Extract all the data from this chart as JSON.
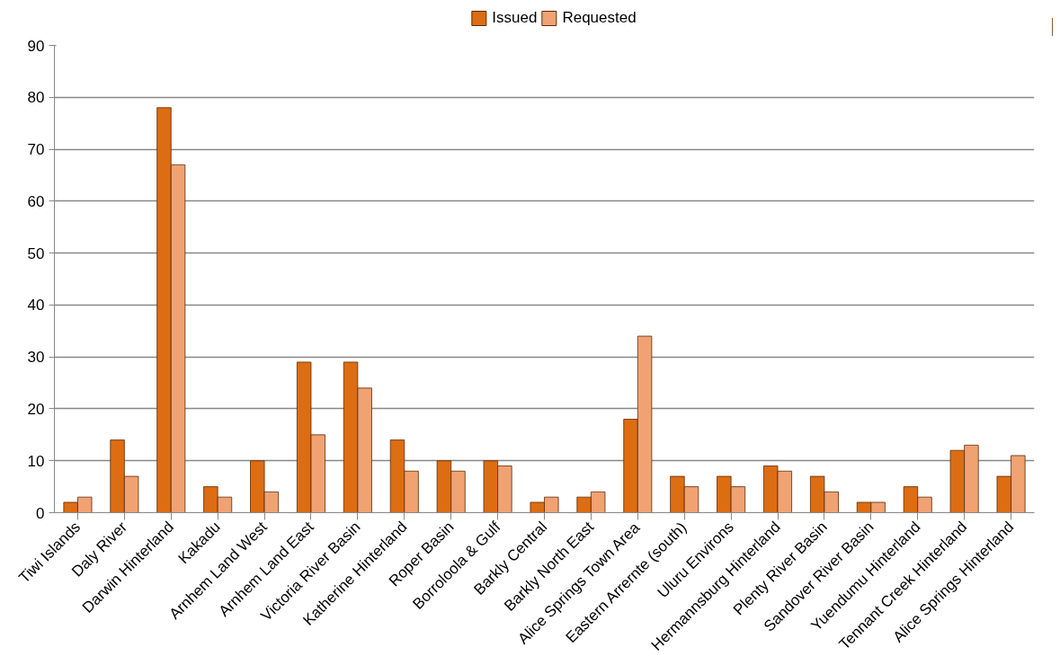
{
  "chart_data": {
    "type": "bar",
    "categories": [
      "Tiwi Islands",
      "Daly River",
      "Darwin Hinterland",
      "Kakadu",
      "Arnhem Land West",
      "Arnhem Land East",
      "Victoria River Basin",
      "Katherine Hinterland",
      "Roper Basin",
      "Borroloola & Gulf",
      "Barkly Central",
      "Barkly North East",
      "Alice Springs Town Area",
      "Eastern Arrernte (south)",
      "Uluru Environs",
      "Hermannsburg Hinterland",
      "Plenty River Basin",
      "Sandover River Basin",
      "Yuendumu Hinterland",
      "Tennant Creek Hinterland",
      "Alice Springs Hinterland"
    ],
    "series": [
      {
        "name": "Issued",
        "color": "#dd6d12",
        "values": [
          2,
          14,
          78,
          5,
          10,
          29,
          29,
          14,
          10,
          10,
          2,
          3,
          18,
          7,
          7,
          9,
          7,
          2,
          5,
          12,
          7
        ]
      },
      {
        "name": "Requested",
        "color": "#f0a273",
        "values": [
          3,
          7,
          67,
          3,
          4,
          15,
          24,
          8,
          8,
          9,
          3,
          4,
          34,
          5,
          5,
          8,
          4,
          2,
          3,
          13,
          11
        ]
      }
    ],
    "ylim": [
      0,
      90
    ],
    "yticks": [
      0,
      10,
      20,
      30,
      40,
      50,
      60,
      70,
      80,
      90
    ],
    "grid": "y",
    "legend": "top"
  }
}
